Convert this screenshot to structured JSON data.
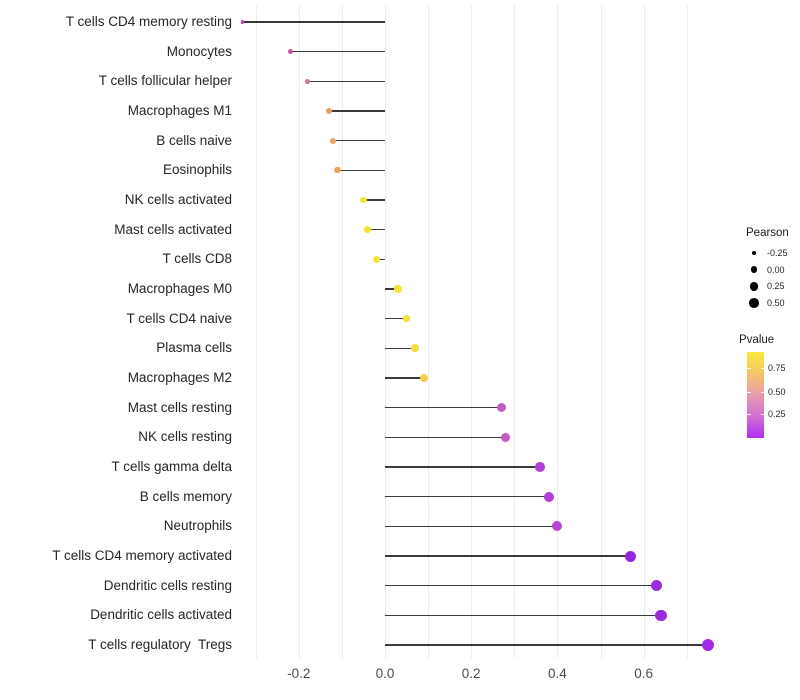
{
  "chart_data": {
    "type": "lollipop",
    "title": "",
    "xlabel": "",
    "ylabel": "",
    "xlim": [
      -0.385,
      0.805
    ],
    "x_tick_labels": [
      "-0.2",
      "0.0",
      "0.2",
      "0.4",
      "0.6"
    ],
    "x_tick_values": [
      -0.2,
      0.0,
      0.2,
      0.4,
      0.6
    ],
    "grid_values": [
      -0.3,
      -0.2,
      -0.1,
      0.0,
      0.1,
      0.2,
      0.3,
      0.4,
      0.5,
      0.6,
      0.7
    ],
    "grid": "vertical-only",
    "legend_position": "right",
    "rows": [
      {
        "label": "T cells CD4 memory resting",
        "pearson": -0.33,
        "color": "#b13fc4"
      },
      {
        "label": "Monocytes",
        "pearson": -0.22,
        "color": "#c2589e"
      },
      {
        "label": "T cells follicular helper",
        "pearson": -0.18,
        "color": "#d4738f"
      },
      {
        "label": "Macrophages M1",
        "pearson": -0.13,
        "color": "#e9a265"
      },
      {
        "label": "B cells naive",
        "pearson": -0.12,
        "color": "#eaa660"
      },
      {
        "label": "Eosinophils",
        "pearson": -0.11,
        "color": "#eaa55e"
      },
      {
        "label": "NK cells activated",
        "pearson": -0.05,
        "color": "#f3e430"
      },
      {
        "label": "Mast cells activated",
        "pearson": -0.04,
        "color": "#f4e52c"
      },
      {
        "label": "T cells CD8",
        "pearson": -0.02,
        "color": "#f3e236"
      },
      {
        "label": "Macrophages M0",
        "pearson": 0.03,
        "color": "#f4e42e"
      },
      {
        "label": "T cells CD4 naive",
        "pearson": 0.05,
        "color": "#f3df3a"
      },
      {
        "label": "Plasma cells",
        "pearson": 0.07,
        "color": "#f2dc40"
      },
      {
        "label": "Macrophages M2",
        "pearson": 0.09,
        "color": "#f0d34a"
      },
      {
        "label": "Mast cells resting",
        "pearson": 0.27,
        "color": "#c55cc0"
      },
      {
        "label": "NK cells resting",
        "pearson": 0.28,
        "color": "#c459c6"
      },
      {
        "label": "T cells gamma delta",
        "pearson": 0.36,
        "color": "#b241d8"
      },
      {
        "label": "B cells memory",
        "pearson": 0.38,
        "color": "#b23eda"
      },
      {
        "label": "Neutrophils",
        "pearson": 0.4,
        "color": "#b546d6"
      },
      {
        "label": "T cells CD4 memory activated",
        "pearson": 0.57,
        "color": "#9327da"
      },
      {
        "label": "Dendritic cells resting",
        "pearson": 0.63,
        "color": "#9c2bdc"
      },
      {
        "label": "Dendritic cells activated",
        "pearson": 0.64,
        "color": "#9c2bdc"
      },
      {
        "label": "T cells regulatory  Tregs",
        "pearson": 0.75,
        "color": "#a32ae4"
      }
    ]
  },
  "legend": {
    "pearson": {
      "title": "Pearson",
      "dot_color": "#000000",
      "items": [
        {
          "label": "-0.25",
          "pearson": -0.25
        },
        {
          "label": "0.00",
          "pearson": 0.0
        },
        {
          "label": "0.25",
          "pearson": 0.25
        },
        {
          "label": "0.50",
          "pearson": 0.5
        }
      ]
    },
    "pvalue": {
      "title": "Pvalue",
      "tick_labels": [
        "0.75",
        "0.50",
        "0.25"
      ],
      "gradient_top_to_bottom": [
        "#fae93c",
        "#f6c468",
        "#e99bac",
        "#d26fd3",
        "#b02ef2"
      ]
    }
  },
  "colors": {
    "stem": "#3a3a3a",
    "gridline": "#ececec",
    "axis_text": "#4d4d4d",
    "label_text": "#262626",
    "background": "#ffffff"
  }
}
